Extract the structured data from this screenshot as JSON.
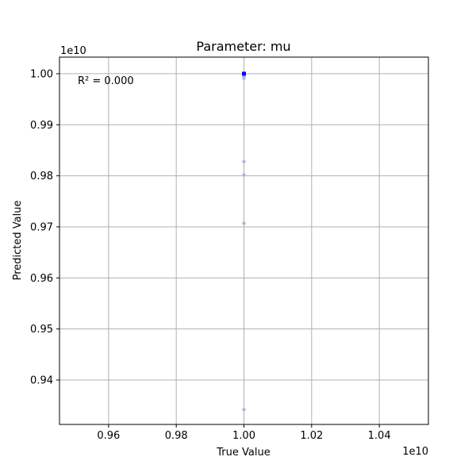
{
  "chart_data": {
    "type": "scatter",
    "title": "Parameter: mu",
    "xlabel": "True Value",
    "ylabel": "Predicted Value",
    "x_offset_label": "1e10",
    "y_offset_label": "1e10",
    "annotation": "R² = 0.000",
    "xlim": [
      0.9455,
      1.0545
    ],
    "ylim": [
      0.9313,
      1.00325
    ],
    "x_ticks": [
      0.96,
      0.98,
      1.0,
      1.02,
      1.04
    ],
    "x_tick_labels": [
      "0.96",
      "0.98",
      "1.00",
      "1.02",
      "1.04"
    ],
    "y_ticks": [
      0.94,
      0.95,
      0.96,
      0.97,
      0.98,
      0.99,
      1.0
    ],
    "y_tick_labels": [
      "0.94",
      "0.95",
      "0.96",
      "0.97",
      "0.98",
      "0.99",
      "1.00"
    ],
    "grid": true,
    "points": [
      {
        "x": 1.0,
        "y": 1.0
      },
      {
        "x": 1.0,
        "y": 0.99965
      },
      {
        "x": 1.0,
        "y": 0.99948
      },
      {
        "x": 1.0,
        "y": 0.99922
      },
      {
        "x": 1.0,
        "y": 0.9991
      },
      {
        "x": 1.0,
        "y": 0.9828
      },
      {
        "x": 1.0,
        "y": 0.9802
      },
      {
        "x": 1.0,
        "y": 0.9707
      },
      {
        "x": 1.0,
        "y": 0.9342
      }
    ],
    "highlight": {
      "x": 1.0,
      "y": 1.0
    },
    "colors": {
      "points": "#b0aee0",
      "highlight": "#0000ff",
      "grid": "#b0b0b0"
    }
  }
}
